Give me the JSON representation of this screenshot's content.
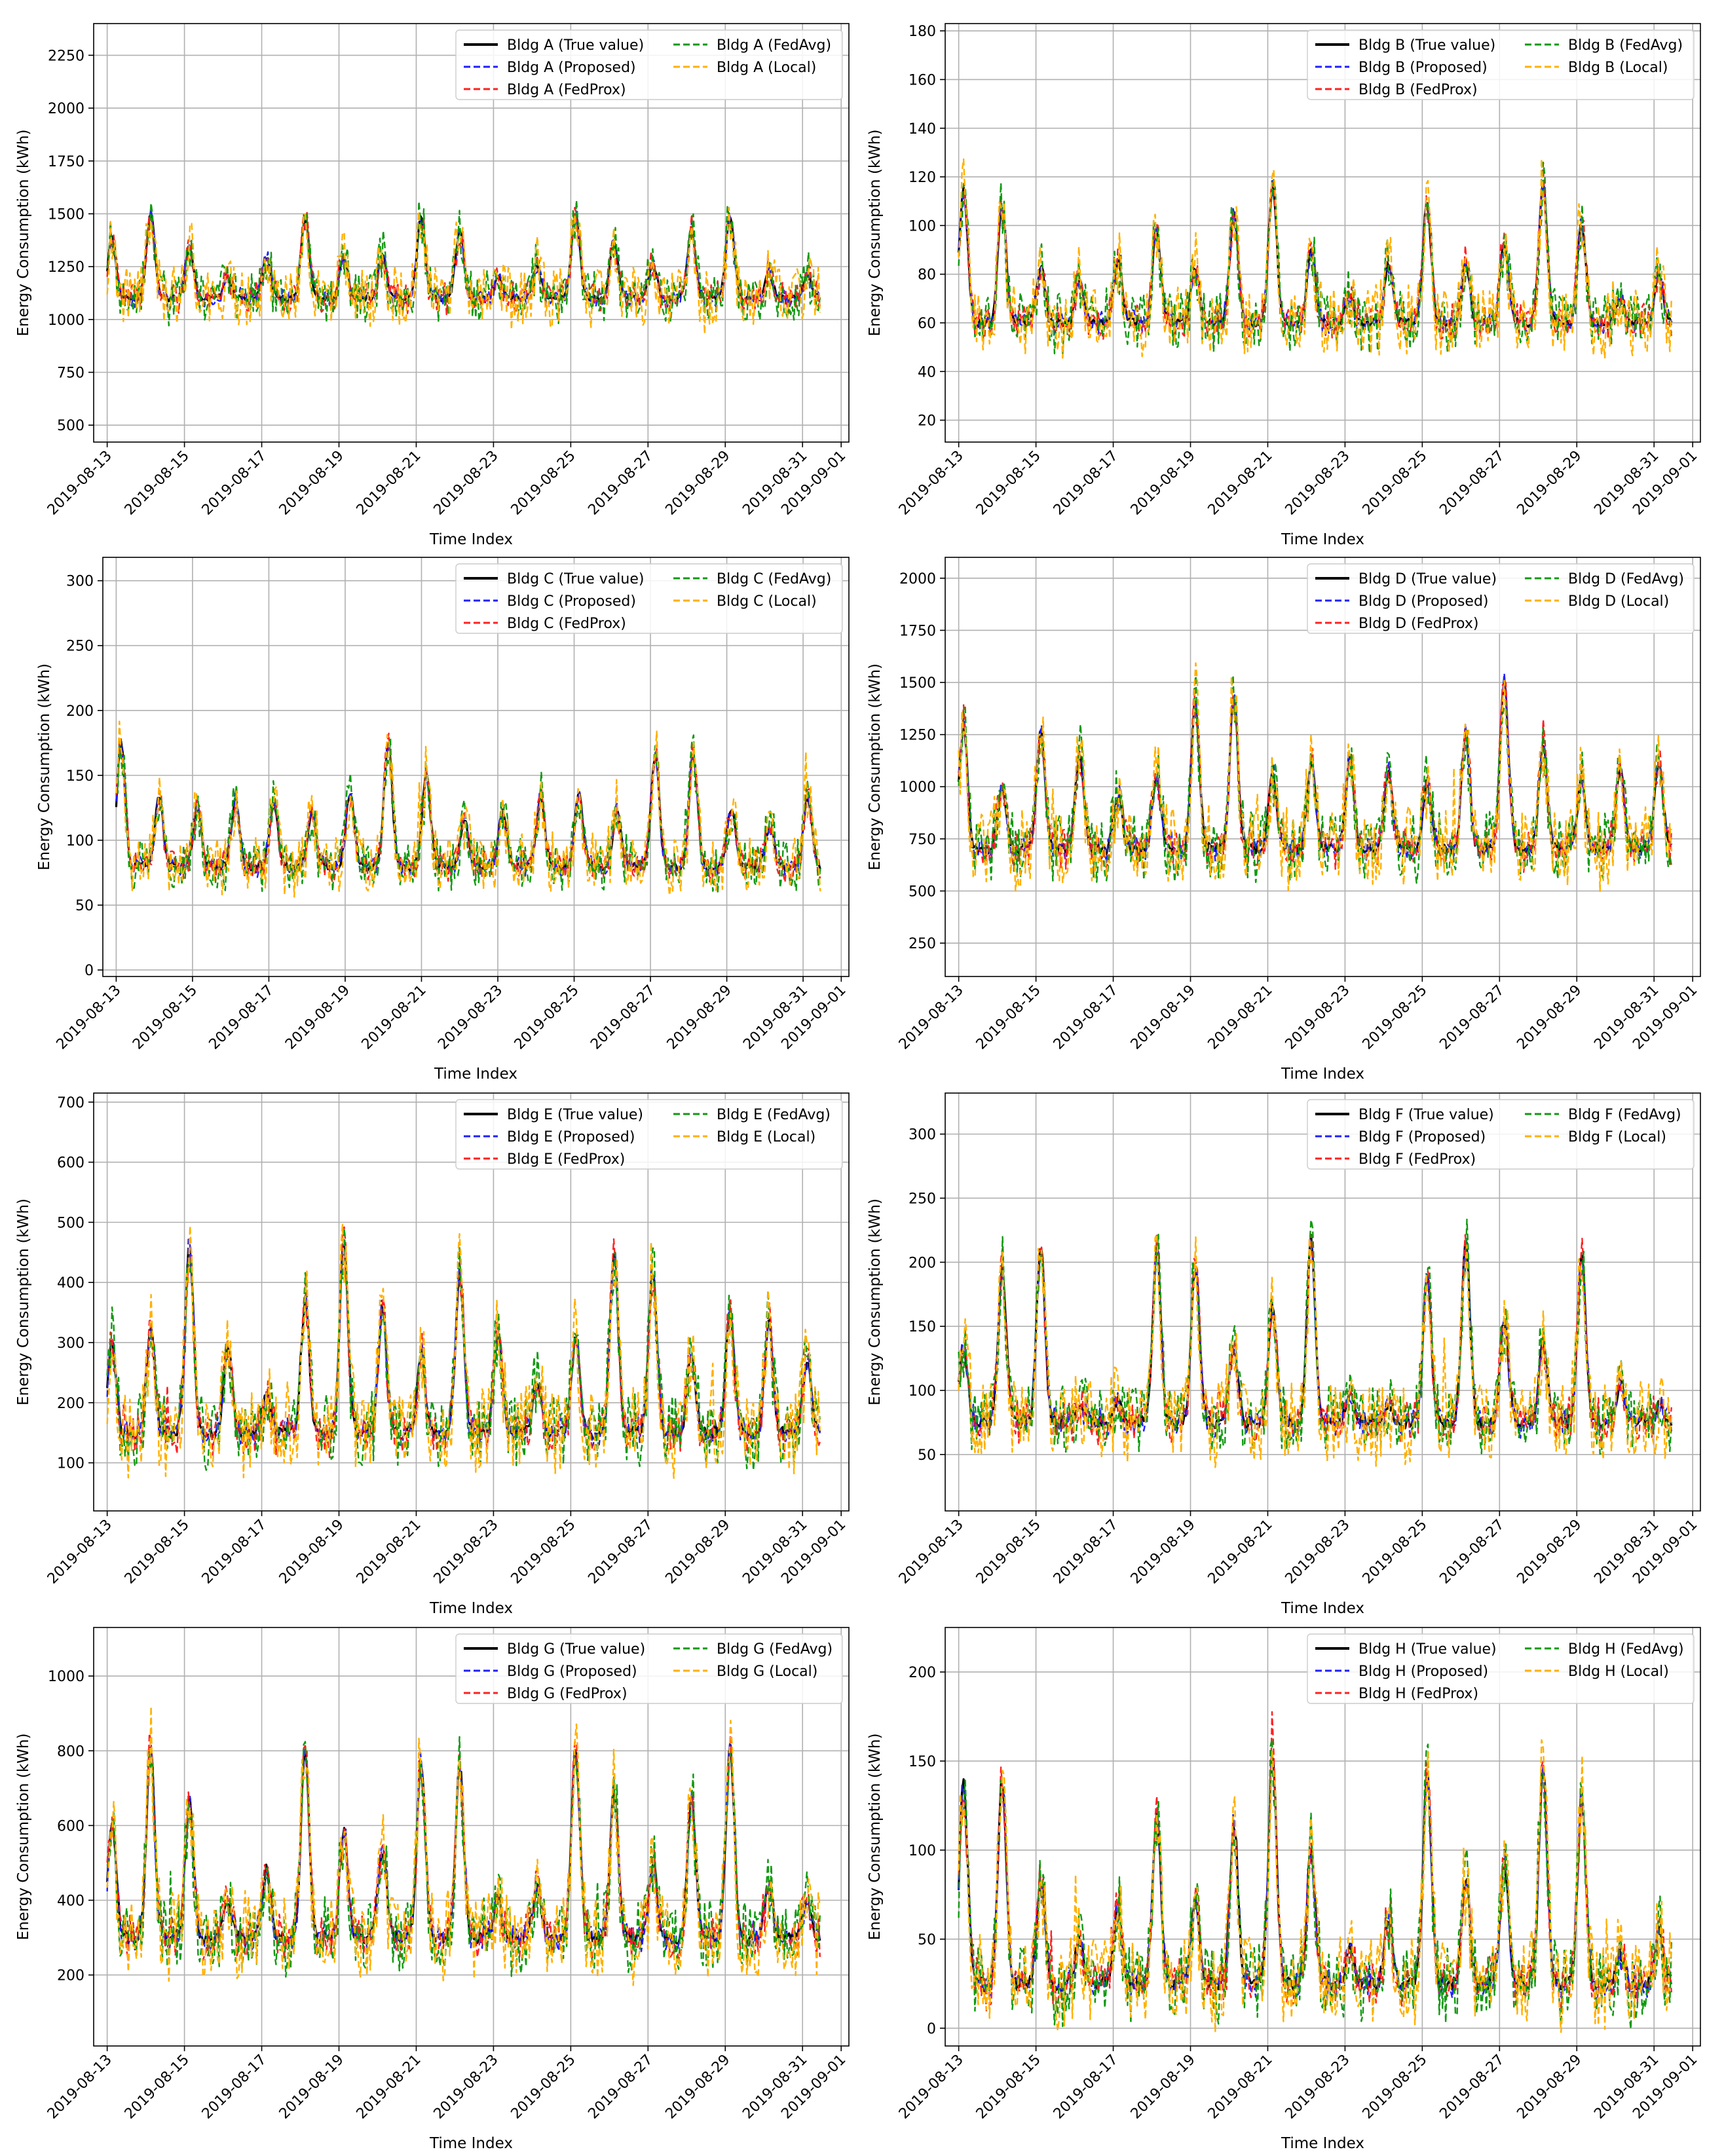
{
  "figure": {
    "x_label": "Time Index",
    "y_label": "Energy Consumption (kWh)",
    "x_tick_labels": [
      "2019-08-13",
      "2019-08-15",
      "2019-08-17",
      "2019-08-19",
      "2019-08-21",
      "2019-08-23",
      "2019-08-25",
      "2019-08-27",
      "2019-08-29",
      "2019-08-31",
      "2019-09-01"
    ],
    "series_styles": [
      {
        "key": "true",
        "label_suffix": "(True value)",
        "color": "#000000",
        "dashed": false
      },
      {
        "key": "proposed",
        "label_suffix": "(Proposed)",
        "color": "#1f1fff",
        "dashed": true
      },
      {
        "key": "fedprox",
        "label_suffix": "(FedProx)",
        "color": "#ff2020",
        "dashed": true
      },
      {
        "key": "fedavg",
        "label_suffix": "(FedAvg)",
        "color": "#119911",
        "dashed": true
      },
      {
        "key": "local",
        "label_suffix": "(Local)",
        "color": "#ffb000",
        "dashed": true
      }
    ]
  },
  "chart_data": [
    {
      "type": "line",
      "building": "Bldg A",
      "title": "",
      "xlabel": "Time Index",
      "ylabel": "Energy Consumption (kWh)",
      "x_start": "2019-08-13T12:00",
      "x_end": "2019-08-31T23:00",
      "x_range_days": [
        -0.35,
        19.2
      ],
      "ylim": [
        420,
        2400
      ],
      "yticks": [
        500,
        750,
        1000,
        1250,
        1500,
        1750,
        2000,
        2250
      ],
      "base": 1100,
      "daily_amp": 350,
      "weekly_amp": 0.2,
      "noise": 0.25,
      "legend": [
        "Bldg A (True value)",
        "Bldg A (Proposed)",
        "Bldg A (FedProx)",
        "Bldg A (FedAvg)",
        "Bldg A (Local)"
      ]
    },
    {
      "type": "line",
      "building": "Bldg B",
      "title": "",
      "xlabel": "Time Index",
      "ylabel": "Energy Consumption (kWh)",
      "x_start": "2019-08-13T12:00",
      "x_end": "2019-08-31T23:00",
      "x_range_days": [
        -0.35,
        19.2
      ],
      "ylim": [
        11,
        183
      ],
      "yticks": [
        20,
        40,
        60,
        80,
        100,
        120,
        140,
        160,
        180
      ],
      "base": 60,
      "daily_amp": 50,
      "weekly_amp": 0.25,
      "noise": 0.2,
      "legend": [
        "Bldg B (True value)",
        "Bldg B (Proposed)",
        "Bldg B (FedProx)",
        "Bldg B (FedAvg)",
        "Bldg B (Local)"
      ]
    },
    {
      "type": "line",
      "building": "Bldg C",
      "title": "",
      "xlabel": "Time Index",
      "ylabel": "Energy Consumption (kWh)",
      "x_start": "2019-08-13T12:00",
      "x_end": "2019-08-31T23:00",
      "x_range_days": [
        -0.35,
        19.2
      ],
      "ylim": [
        -5,
        318
      ],
      "yticks": [
        0,
        50,
        100,
        150,
        200,
        250,
        300
      ],
      "base": 80,
      "daily_amp": 85,
      "weekly_amp": 0.2,
      "noise": 0.25,
      "legend": [
        "Bldg C (True value)",
        "Bldg C (Proposed)",
        "Bldg C (FedProx)",
        "Bldg C (FedAvg)",
        "Bldg C (Local)"
      ]
    },
    {
      "type": "line",
      "building": "Bldg D",
      "title": "",
      "xlabel": "Time Index",
      "ylabel": "Energy Consumption (kWh)",
      "x_start": "2019-08-13T12:00",
      "x_end": "2019-08-31T23:00",
      "x_range_days": [
        -0.35,
        19.2
      ],
      "ylim": [
        90,
        2100
      ],
      "yticks": [
        250,
        500,
        750,
        1000,
        1250,
        1500,
        1750,
        2000
      ],
      "base": 700,
      "daily_amp": 700,
      "weekly_amp": 0.2,
      "noise": 0.2,
      "legend": [
        "Bldg D (True value)",
        "Bldg D (Proposed)",
        "Bldg D (FedProx)",
        "Bldg D (FedAvg)",
        "Bldg D (Local)"
      ]
    },
    {
      "type": "line",
      "building": "Bldg E",
      "title": "",
      "xlabel": "Time Index",
      "ylabel": "Energy Consumption (kWh)",
      "x_start": "2019-08-13T12:00",
      "x_end": "2019-08-31T23:00",
      "x_range_days": [
        -0.35,
        19.2
      ],
      "ylim": [
        20,
        715
      ],
      "yticks": [
        100,
        200,
        300,
        400,
        500,
        600,
        700
      ],
      "base": 150,
      "daily_amp": 280,
      "weekly_amp": 0.2,
      "noise": 0.2,
      "legend": [
        "Bldg E (True value)",
        "Bldg E (Proposed)",
        "Bldg E (FedProx)",
        "Bldg E (FedAvg)",
        "Bldg E (Local)"
      ]
    },
    {
      "type": "line",
      "building": "Bldg F",
      "title": "",
      "xlabel": "Time Index",
      "ylabel": "Energy Consumption (kWh)",
      "x_start": "2019-08-13T12:00",
      "x_end": "2019-08-31T23:00",
      "x_range_days": [
        -0.35,
        19.2
      ],
      "ylim": [
        6,
        332
      ],
      "yticks": [
        50,
        100,
        150,
        200,
        250,
        300
      ],
      "base": 75,
      "daily_amp": 125,
      "weekly_amp": 0.35,
      "noise": 0.2,
      "legend": [
        "Bldg F (True value)",
        "Bldg F (Proposed)",
        "Bldg F (FedProx)",
        "Bldg F (FedAvg)",
        "Bldg F (Local)"
      ]
    },
    {
      "type": "line",
      "building": "Bldg G",
      "title": "",
      "xlabel": "Time Index",
      "ylabel": "Energy Consumption (kWh)",
      "x_start": "2019-08-13T12:00",
      "x_end": "2019-08-31T23:00",
      "x_range_days": [
        -0.35,
        19.2
      ],
      "ylim": [
        10,
        1130
      ],
      "yticks": [
        200,
        400,
        600,
        800,
        1000
      ],
      "base": 300,
      "daily_amp": 450,
      "weekly_amp": 0.25,
      "noise": 0.2,
      "legend": [
        "Bldg G (True value)",
        "Bldg G (Proposed)",
        "Bldg G (FedProx)",
        "Bldg G (FedAvg)",
        "Bldg G (Local)"
      ]
    },
    {
      "type": "line",
      "building": "Bldg H",
      "title": "",
      "xlabel": "Time Index",
      "ylabel": "Energy Consumption (kWh)",
      "x_start": "2019-08-13T12:00",
      "x_end": "2019-08-31T23:00",
      "x_range_days": [
        -0.35,
        19.2
      ],
      "ylim": [
        -10,
        225
      ],
      "yticks": [
        0,
        50,
        100,
        150,
        200
      ],
      "base": 25,
      "daily_amp": 110,
      "weekly_amp": 0.3,
      "noise": 0.25,
      "legend": [
        "Bldg H (True value)",
        "Bldg H (Proposed)",
        "Bldg H (FedProx)",
        "Bldg H (FedAvg)",
        "Bldg H (Local)"
      ]
    }
  ]
}
